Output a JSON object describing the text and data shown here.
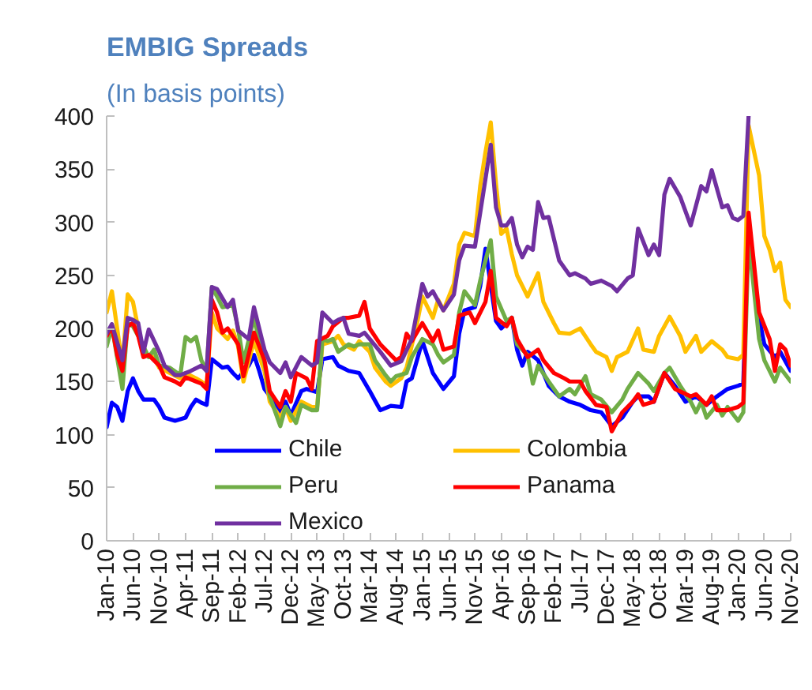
{
  "chart_data": {
    "type": "line",
    "title": "EMBIG Spreads",
    "subtitle": "(In basis points)",
    "xlim": [
      "2010-01",
      "2020-11"
    ],
    "ylim": [
      0,
      400
    ],
    "yticks": [
      0,
      50,
      100,
      150,
      200,
      250,
      300,
      350,
      400
    ],
    "xticks": [
      {
        "value": "2010-01",
        "label": "Jan-10"
      },
      {
        "value": "2010-06",
        "label": "Jun-10"
      },
      {
        "value": "2010-11",
        "label": "Nov-10"
      },
      {
        "value": "2011-04",
        "label": "Apr-11"
      },
      {
        "value": "2011-09",
        "label": "Sep-11"
      },
      {
        "value": "2012-02",
        "label": "Feb-12"
      },
      {
        "value": "2012-07",
        "label": "Jul-12"
      },
      {
        "value": "2012-12",
        "label": "Dec-12"
      },
      {
        "value": "2013-05",
        "label": "May-13"
      },
      {
        "value": "2013-10",
        "label": "Oct-13"
      },
      {
        "value": "2014-03",
        "label": "Mar-14"
      },
      {
        "value": "2014-08",
        "label": "Aug-14"
      },
      {
        "value": "2015-01",
        "label": "Jan-15"
      },
      {
        "value": "2015-06",
        "label": "Jun-15"
      },
      {
        "value": "2015-11",
        "label": "Nov-15"
      },
      {
        "value": "2016-04",
        "label": "Apr-16"
      },
      {
        "value": "2016-09",
        "label": "Sep-16"
      },
      {
        "value": "2017-02",
        "label": "Feb-17"
      },
      {
        "value": "2017-07",
        "label": "Jul-17"
      },
      {
        "value": "2017-12",
        "label": "Dec-17"
      },
      {
        "value": "2018-05",
        "label": "May-18"
      },
      {
        "value": "2018-10",
        "label": "Oct-18"
      },
      {
        "value": "2019-03",
        "label": "Mar-19"
      },
      {
        "value": "2019-08",
        "label": "Aug-19"
      },
      {
        "value": "2020-01",
        "label": "Jan-20"
      },
      {
        "value": "2020-06",
        "label": "Jun-20"
      },
      {
        "value": "2020-11",
        "label": "Nov-20"
      }
    ],
    "legend": "bottom",
    "series": [
      {
        "name": "Chile",
        "color": "#0000ff",
        "x": [
          "2010-01",
          "2010-02",
          "2010-03",
          "2010-04",
          "2010-05",
          "2010-06",
          "2010-07",
          "2010-08",
          "2010-10",
          "2010-11",
          "2010-12",
          "2011-02",
          "2011-04",
          "2011-05",
          "2011-06",
          "2011-07",
          "2011-08",
          "2011-09",
          "2011-11",
          "2011-12",
          "2012-01",
          "2012-02",
          "2012-04",
          "2012-05",
          "2012-06",
          "2012-07",
          "2012-09",
          "2012-10",
          "2012-11",
          "2012-12",
          "2013-02",
          "2013-03",
          "2013-05",
          "2013-06",
          "2013-08",
          "2013-09",
          "2013-11",
          "2014-01",
          "2014-03",
          "2014-05",
          "2014-07",
          "2014-09",
          "2014-10",
          "2014-11",
          "2015-01",
          "2015-03",
          "2015-05",
          "2015-07",
          "2015-08",
          "2015-09",
          "2015-11",
          "2015-12",
          "2016-01",
          "2016-03",
          "2016-04",
          "2016-06",
          "2016-07",
          "2016-08",
          "2016-09",
          "2016-11",
          "2017-01",
          "2017-03",
          "2017-05",
          "2017-07",
          "2017-09",
          "2017-11",
          "2018-01",
          "2018-03",
          "2018-05",
          "2018-06",
          "2018-08",
          "2018-09",
          "2018-11",
          "2019-01",
          "2019-03",
          "2019-05",
          "2019-07",
          "2019-09",
          "2019-11",
          "2020-01",
          "2020-02",
          "2020-03",
          "2020-05",
          "2020-06",
          "2020-08",
          "2020-09",
          "2020-11"
        ],
        "values": [
          107,
          130,
          126,
          113,
          141,
          153,
          141,
          133,
          133,
          126,
          116,
          113,
          116,
          126,
          133,
          130,
          128,
          171,
          163,
          164,
          158,
          153,
          165,
          175,
          160,
          143,
          130,
          121,
          131,
          118,
          141,
          143,
          140,
          171,
          173,
          165,
          160,
          158,
          141,
          123,
          127,
          126,
          150,
          153,
          188,
          158,
          143,
          155,
          195,
          217,
          220,
          240,
          275,
          207,
          200,
          210,
          180,
          165,
          178,
          170,
          146,
          136,
          131,
          128,
          123,
          121,
          108,
          116,
          131,
          136,
          136,
          131,
          158,
          146,
          131,
          136,
          128,
          136,
          143,
          146,
          148,
          300,
          210,
          185,
          173,
          178,
          160
        ]
      },
      {
        "name": "Colombia",
        "color": "#ffc000",
        "x": [
          "2010-01",
          "2010-02",
          "2010-04",
          "2010-05",
          "2010-06",
          "2010-07",
          "2010-08",
          "2010-10",
          "2010-11",
          "2011-01",
          "2011-03",
          "2011-04",
          "2011-06",
          "2011-07",
          "2011-08",
          "2011-09",
          "2011-10",
          "2011-12",
          "2012-01",
          "2012-02",
          "2012-03",
          "2012-05",
          "2012-07",
          "2012-08",
          "2012-10",
          "2012-11",
          "2012-12",
          "2013-02",
          "2013-04",
          "2013-05",
          "2013-06",
          "2013-08",
          "2013-09",
          "2013-10",
          "2013-12",
          "2014-01",
          "2014-03",
          "2014-04",
          "2014-06",
          "2014-07",
          "2014-09",
          "2014-10",
          "2014-12",
          "2015-01",
          "2015-03",
          "2015-04",
          "2015-05",
          "2015-07",
          "2015-08",
          "2015-09",
          "2015-11",
          "2015-12",
          "2016-01",
          "2016-02",
          "2016-03",
          "2016-04",
          "2016-05",
          "2016-06",
          "2016-07",
          "2016-08",
          "2016-09",
          "2016-11",
          "2016-12",
          "2017-02",
          "2017-03",
          "2017-05",
          "2017-07",
          "2017-09",
          "2017-10",
          "2017-12",
          "2018-01",
          "2018-02",
          "2018-04",
          "2018-06",
          "2018-07",
          "2018-09",
          "2018-10",
          "2018-12",
          "2019-02",
          "2019-03",
          "2019-05",
          "2019-06",
          "2019-08",
          "2019-10",
          "2019-11",
          "2020-01",
          "2020-02",
          "2020-03",
          "2020-05",
          "2020-06",
          "2020-07",
          "2020-08",
          "2020-09",
          "2020-10",
          "2020-11"
        ],
        "values": [
          215,
          235,
          165,
          232,
          225,
          200,
          175,
          173,
          163,
          158,
          153,
          158,
          153,
          150,
          146,
          215,
          200,
          190,
          198,
          183,
          150,
          188,
          160,
          131,
          116,
          126,
          113,
          131,
          126,
          126,
          185,
          188,
          193,
          185,
          180,
          188,
          178,
          163,
          150,
          146,
          153,
          163,
          205,
          230,
          210,
          227,
          217,
          242,
          279,
          290,
          287,
          334,
          366,
          394,
          336,
          289,
          294,
          270,
          250,
          240,
          230,
          252,
          225,
          205,
          196,
          195,
          200,
          185,
          178,
          173,
          160,
          173,
          178,
          200,
          180,
          178,
          193,
          211,
          193,
          178,
          193,
          178,
          188,
          180,
          173,
          171,
          175,
          391,
          344,
          287,
          274,
          254,
          262,
          227,
          220
        ]
      },
      {
        "name": "Peru",
        "color": "#70ad47",
        "x": [
          "2010-01",
          "2010-02",
          "2010-04",
          "2010-05",
          "2010-06",
          "2010-07",
          "2010-09",
          "2010-10",
          "2010-11",
          "2011-01",
          "2011-03",
          "2011-04",
          "2011-05",
          "2011-06",
          "2011-07",
          "2011-08",
          "2011-09",
          "2011-10",
          "2011-11",
          "2012-01",
          "2012-02",
          "2012-03",
          "2012-05",
          "2012-07",
          "2012-08",
          "2012-10",
          "2012-11",
          "2013-01",
          "2013-02",
          "2013-04",
          "2013-05",
          "2013-06",
          "2013-07",
          "2013-08",
          "2013-09",
          "2013-11",
          "2013-12",
          "2014-01",
          "2014-03",
          "2014-04",
          "2014-06",
          "2014-07",
          "2014-08",
          "2014-10",
          "2014-11",
          "2015-01",
          "2015-03",
          "2015-04",
          "2015-05",
          "2015-07",
          "2015-08",
          "2015-09",
          "2015-11",
          "2015-12",
          "2016-02",
          "2016-03",
          "2016-05",
          "2016-06",
          "2016-07",
          "2016-09",
          "2016-10",
          "2016-11",
          "2017-01",
          "2017-03",
          "2017-05",
          "2017-06",
          "2017-08",
          "2017-09",
          "2017-11",
          "2018-01",
          "2018-03",
          "2018-04",
          "2018-06",
          "2018-08",
          "2018-09",
          "2018-11",
          "2018-12",
          "2019-02",
          "2019-04",
          "2019-05",
          "2019-06",
          "2019-07",
          "2019-09",
          "2019-10",
          "2019-11",
          "2020-01",
          "2020-02",
          "2020-03",
          "2020-05",
          "2020-06",
          "2020-08",
          "2020-09",
          "2020-11"
        ],
        "values": [
          183,
          202,
          143,
          205,
          202,
          193,
          173,
          180,
          165,
          163,
          156,
          192,
          188,
          192,
          170,
          160,
          239,
          230,
          220,
          222,
          200,
          168,
          210,
          168,
          136,
          108,
          126,
          111,
          128,
          123,
          123,
          190,
          188,
          190,
          178,
          185,
          183,
          185,
          185,
          170,
          156,
          150,
          155,
          158,
          173,
          190,
          185,
          175,
          168,
          175,
          215,
          235,
          222,
          245,
          283,
          230,
          207,
          210,
          185,
          175,
          148,
          165,
          150,
          136,
          143,
          138,
          155,
          138,
          133,
          121,
          133,
          143,
          158,
          148,
          141,
          158,
          163,
          146,
          131,
          121,
          131,
          116,
          128,
          118,
          126,
          113,
          121,
          285,
          190,
          170,
          150,
          163,
          150
        ]
      },
      {
        "name": "Panama",
        "color": "#ff0000",
        "x": [
          "2010-01",
          "2010-02",
          "2010-03",
          "2010-04",
          "2010-05",
          "2010-06",
          "2010-07",
          "2010-08",
          "2010-09",
          "2010-11",
          "2010-12",
          "2011-02",
          "2011-03",
          "2011-04",
          "2011-06",
          "2011-07",
          "2011-08",
          "2011-09",
          "2011-10",
          "2011-11",
          "2011-12",
          "2012-02",
          "2012-03",
          "2012-05",
          "2012-07",
          "2012-08",
          "2012-10",
          "2012-11",
          "2012-12",
          "2013-01",
          "2013-03",
          "2013-04",
          "2013-05",
          "2013-07",
          "2013-08",
          "2013-10",
          "2013-11",
          "2014-01",
          "2014-02",
          "2014-03",
          "2014-05",
          "2014-06",
          "2014-08",
          "2014-09",
          "2014-10",
          "2014-11",
          "2015-01",
          "2015-03",
          "2015-04",
          "2015-05",
          "2015-07",
          "2015-08",
          "2015-10",
          "2015-11",
          "2016-01",
          "2016-02",
          "2016-03",
          "2016-05",
          "2016-06",
          "2016-07",
          "2016-09",
          "2016-11",
          "2016-12",
          "2017-02",
          "2017-04",
          "2017-05",
          "2017-07",
          "2017-08",
          "2017-10",
          "2017-12",
          "2018-01",
          "2018-03",
          "2018-05",
          "2018-06",
          "2018-07",
          "2018-09",
          "2018-11",
          "2019-01",
          "2019-04",
          "2019-05",
          "2019-07",
          "2019-08",
          "2019-09",
          "2019-11",
          "2020-01",
          "2020-02",
          "2020-03",
          "2020-05",
          "2020-07",
          "2020-08",
          "2020-09",
          "2020-10",
          "2020-11"
        ],
        "values": [
          193,
          202,
          175,
          160,
          202,
          205,
          193,
          173,
          175,
          165,
          154,
          150,
          147,
          154,
          150,
          148,
          143,
          227,
          215,
          196,
          200,
          185,
          155,
          196,
          170,
          141,
          126,
          141,
          131,
          158,
          153,
          143,
          188,
          193,
          202,
          210,
          210,
          212,
          225,
          200,
          185,
          180,
          170,
          173,
          195,
          188,
          205,
          188,
          198,
          180,
          183,
          212,
          215,
          205,
          225,
          254,
          210,
          202,
          210,
          190,
          173,
          180,
          170,
          158,
          153,
          150,
          150,
          141,
          128,
          126,
          103,
          121,
          131,
          138,
          128,
          131,
          158,
          143,
          136,
          138,
          128,
          136,
          123,
          123,
          126,
          130,
          309,
          215,
          190,
          160,
          185,
          180,
          165
        ]
      },
      {
        "name": "Mexico",
        "color": "#7030a0",
        "x": [
          "2010-01",
          "2010-02",
          "2010-04",
          "2010-05",
          "2010-06",
          "2010-07",
          "2010-08",
          "2010-09",
          "2010-11",
          "2010-12",
          "2011-02",
          "2011-03",
          "2011-05",
          "2011-07",
          "2011-08",
          "2011-09",
          "2011-10",
          "2011-12",
          "2012-01",
          "2012-02",
          "2012-04",
          "2012-05",
          "2012-07",
          "2012-08",
          "2012-10",
          "2012-11",
          "2012-12",
          "2013-02",
          "2013-04",
          "2013-05",
          "2013-06",
          "2013-08",
          "2013-09",
          "2013-10",
          "2013-11",
          "2014-01",
          "2014-02",
          "2014-03",
          "2014-05",
          "2014-07",
          "2014-09",
          "2014-11",
          "2015-01",
          "2015-02",
          "2015-03",
          "2015-05",
          "2015-07",
          "2015-08",
          "2015-09",
          "2015-11",
          "2015-12",
          "2016-02",
          "2016-03",
          "2016-04",
          "2016-05",
          "2016-06",
          "2016-07",
          "2016-08",
          "2016-09",
          "2016-10",
          "2016-11",
          "2016-12",
          "2017-01",
          "2017-03",
          "2017-05",
          "2017-06",
          "2017-08",
          "2017-09",
          "2017-11",
          "2018-01",
          "2018-02",
          "2018-04",
          "2018-05",
          "2018-06",
          "2018-08",
          "2018-09",
          "2018-10",
          "2018-11",
          "2018-12",
          "2019-02",
          "2019-04",
          "2019-06",
          "2019-07",
          "2019-08",
          "2019-10",
          "2019-11",
          "2019-12",
          "2020-01",
          "2020-02",
          "2020-03"
        ],
        "values": [
          195,
          204,
          170,
          210,
          208,
          205,
          178,
          199,
          178,
          165,
          156,
          156,
          160,
          165,
          160,
          239,
          237,
          220,
          227,
          198,
          190,
          220,
          180,
          168,
          158,
          168,
          154,
          173,
          165,
          168,
          215,
          205,
          208,
          210,
          195,
          193,
          196,
          190,
          178,
          165,
          169,
          190,
          242,
          230,
          235,
          217,
          232,
          264,
          278,
          277,
          309,
          373,
          314,
          297,
          297,
          304,
          279,
          267,
          277,
          274,
          319,
          304,
          305,
          264,
          250,
          252,
          247,
          242,
          245,
          240,
          235,
          247,
          250,
          294,
          269,
          279,
          269,
          326,
          341,
          324,
          297,
          334,
          329,
          349,
          314,
          316,
          304,
          302,
          306,
          400
        ]
      }
    ]
  }
}
